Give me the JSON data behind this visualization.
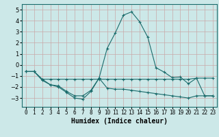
{
  "title": "",
  "xlabel": "Humidex (Indice chaleur)",
  "ylabel": "",
  "background_color": "#cce8e8",
  "grid_color": "#aacccc",
  "line_color": "#1a6b6b",
  "x_values": [
    0,
    1,
    2,
    3,
    4,
    5,
    6,
    7,
    8,
    9,
    10,
    11,
    12,
    13,
    14,
    15,
    16,
    17,
    18,
    19,
    20,
    21,
    22,
    23
  ],
  "series1": [
    -0.6,
    -0.6,
    -1.3,
    -1.8,
    -1.9,
    -2.4,
    -2.8,
    -2.8,
    -2.3,
    -1.2,
    -2.1,
    -2.2,
    -2.2,
    -2.3,
    -2.4,
    -2.5,
    -2.6,
    -2.7,
    -2.8,
    -2.9,
    -3.0,
    -2.8,
    -2.8,
    -2.8
  ],
  "series2": [
    -0.6,
    -0.6,
    -1.3,
    -1.3,
    -1.3,
    -1.3,
    -1.3,
    -1.3,
    -1.3,
    -1.3,
    -1.3,
    -1.3,
    -1.3,
    -1.3,
    -1.3,
    -1.3,
    -1.3,
    -1.3,
    -1.3,
    -1.3,
    -1.3,
    -1.2,
    -1.2,
    -1.2
  ],
  "series3": [
    -0.6,
    -0.6,
    -1.4,
    -1.8,
    -2.0,
    -2.5,
    -3.0,
    -3.1,
    -2.4,
    -1.2,
    1.5,
    2.9,
    4.5,
    4.8,
    3.9,
    2.5,
    -0.25,
    -0.65,
    -1.15,
    -1.1,
    -1.7,
    -1.2,
    -2.8,
    -2.8
  ],
  "ylim": [
    -3.8,
    5.5
  ],
  "xlim": [
    -0.5,
    23.5
  ],
  "yticks": [
    -3,
    -2,
    -1,
    0,
    1,
    2,
    3,
    4,
    5
  ],
  "xticks": [
    0,
    1,
    2,
    3,
    4,
    5,
    6,
    7,
    8,
    9,
    10,
    11,
    12,
    13,
    14,
    15,
    16,
    17,
    18,
    19,
    20,
    21,
    22,
    23
  ]
}
